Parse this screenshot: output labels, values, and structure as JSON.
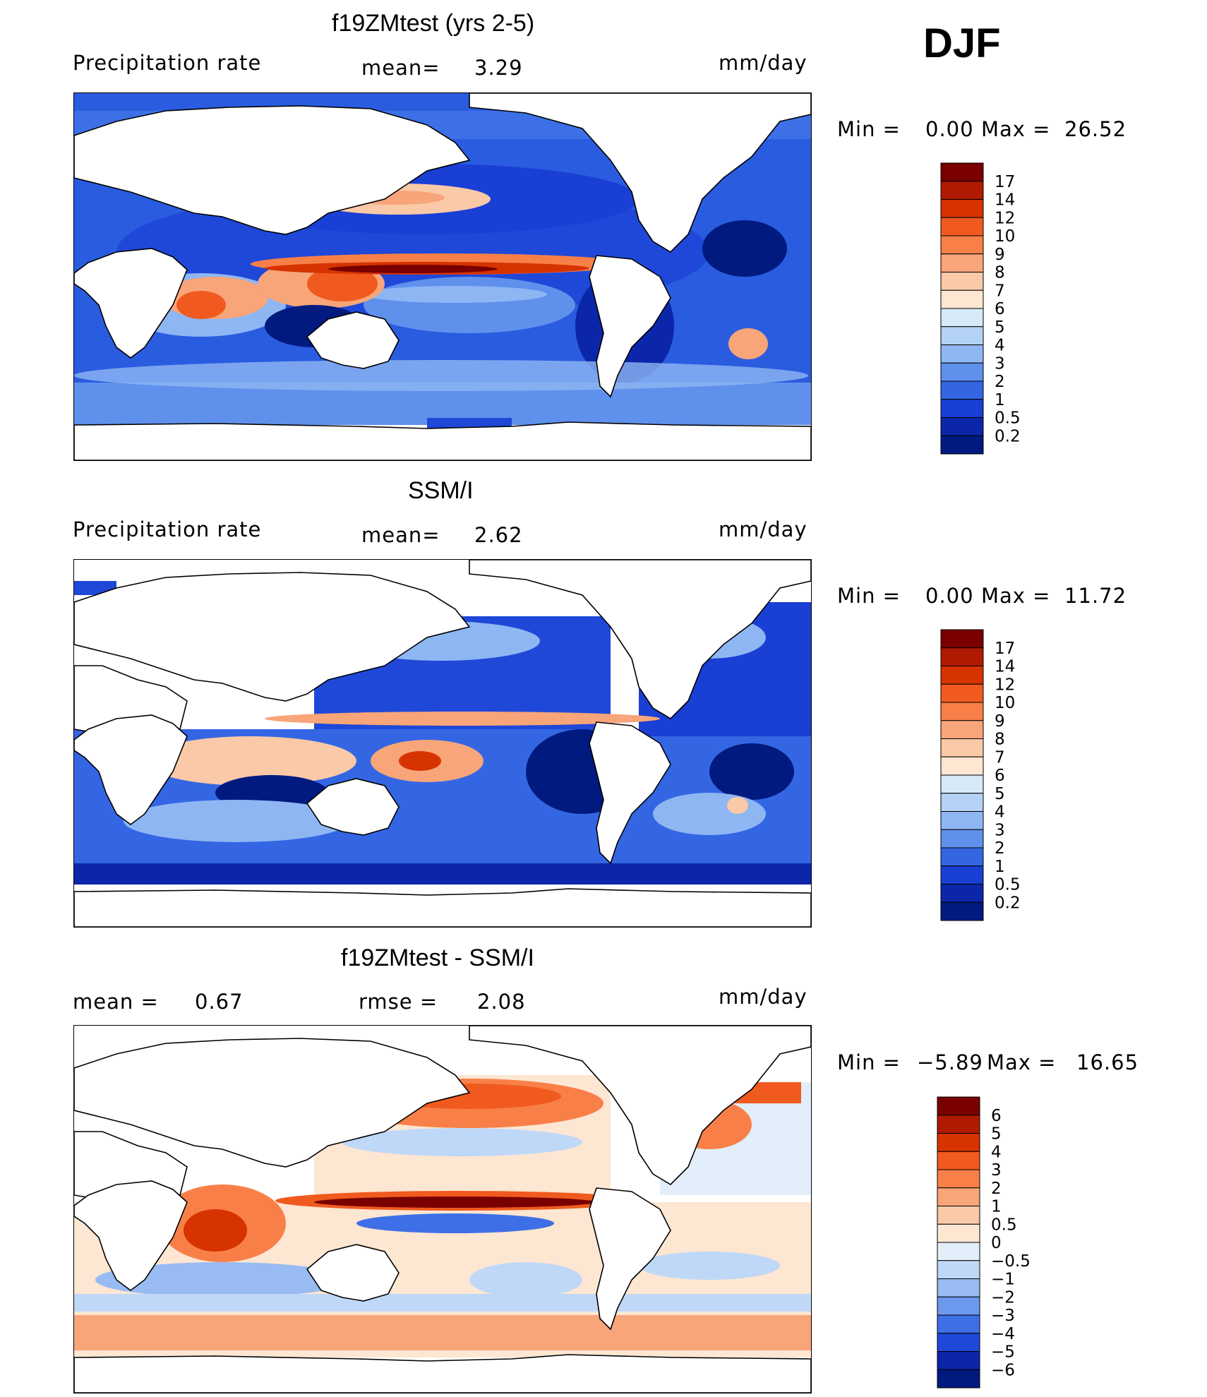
{
  "season": "DJF",
  "panels": [
    {
      "title": "f19ZMtest (yrs 2-5)",
      "left_label": "Precipitation  rate",
      "center_label": "mean=",
      "center_value": "3.29",
      "right_label": "mm/day",
      "minmax": {
        "min_label": "Min  =",
        "min_value": "0.00",
        "max_label": "Max  =",
        "max_value": "26.52"
      }
    },
    {
      "title": "SSM/I",
      "left_label": "Precipitation  rate",
      "center_label": "mean=",
      "center_value": "2.62",
      "right_label": "mm/day",
      "minmax": {
        "min_label": "Min  =",
        "min_value": "0.00",
        "max_label": "Max  =",
        "max_value": "11.72"
      }
    },
    {
      "title": "f19ZMtest - SSM/I",
      "left_label": "mean  =",
      "left_value": "0.67",
      "center_label": "rmse  =",
      "center_value": "2.08",
      "right_label": "mm/day",
      "minmax": {
        "min_label": "Min  =",
        "min_value": "−5.89",
        "max_label": "Max  =",
        "max_value": "16.65"
      }
    }
  ],
  "colorbars": {
    "precip": {
      "labels": [
        "17",
        "14",
        "12",
        "10",
        "9",
        "8",
        "7",
        "6",
        "5",
        "4",
        "3",
        "2",
        "1",
        "0.5",
        "0.2"
      ],
      "colors": [
        "#7a0000",
        "#b01a00",
        "#d63300",
        "#f05a1e",
        "#f88048",
        "#f8a57a",
        "#f9c9a8",
        "#fde6d2",
        "#d6e9f8",
        "#b4d2f6",
        "#8eb6f3",
        "#5f90ec",
        "#3466e3",
        "#1a3fd4",
        "#0b26a8",
        "#001a80"
      ]
    },
    "diff": {
      "labels": [
        "6",
        "5",
        "4",
        "3",
        "2",
        "1",
        "0.5",
        "0",
        "−0.5",
        "−1",
        "−2",
        "−3",
        "−4",
        "−5",
        "−6"
      ],
      "colors": [
        "#7a0000",
        "#b01a00",
        "#d63300",
        "#f05a1e",
        "#f88048",
        "#f8a57a",
        "#f9c9a8",
        "#fde6d2",
        "#e2eefa",
        "#c0d8f7",
        "#98bbf3",
        "#6c98ee",
        "#3f6fe6",
        "#1f48d8",
        "#0b26a8",
        "#001a80"
      ]
    }
  },
  "chart_data": [
    {
      "type": "heatmap",
      "title": "f19ZMtest (yrs 2-5)",
      "variable": "Precipitation  rate",
      "units": "mm/day",
      "mean": 3.29,
      "min": 0.0,
      "max": 26.52,
      "levels": [
        0.2,
        0.5,
        1,
        2,
        3,
        4,
        5,
        6,
        7,
        8,
        9,
        10,
        12,
        14,
        17
      ]
    },
    {
      "type": "heatmap",
      "title": "SSM/I",
      "variable": "Precipitation  rate",
      "units": "mm/day",
      "mean": 2.62,
      "min": 0.0,
      "max": 11.72,
      "levels": [
        0.2,
        0.5,
        1,
        2,
        3,
        4,
        5,
        6,
        7,
        8,
        9,
        10,
        12,
        14,
        17
      ]
    },
    {
      "type": "heatmap",
      "title": "f19ZMtest - SSM/I",
      "units": "mm/day",
      "mean": 0.67,
      "rmse": 2.08,
      "min": -5.89,
      "max": 16.65,
      "levels": [
        -6,
        -5,
        -4,
        -3,
        -2,
        -1,
        -0.5,
        0,
        0.5,
        1,
        2,
        3,
        4,
        5,
        6
      ]
    }
  ]
}
